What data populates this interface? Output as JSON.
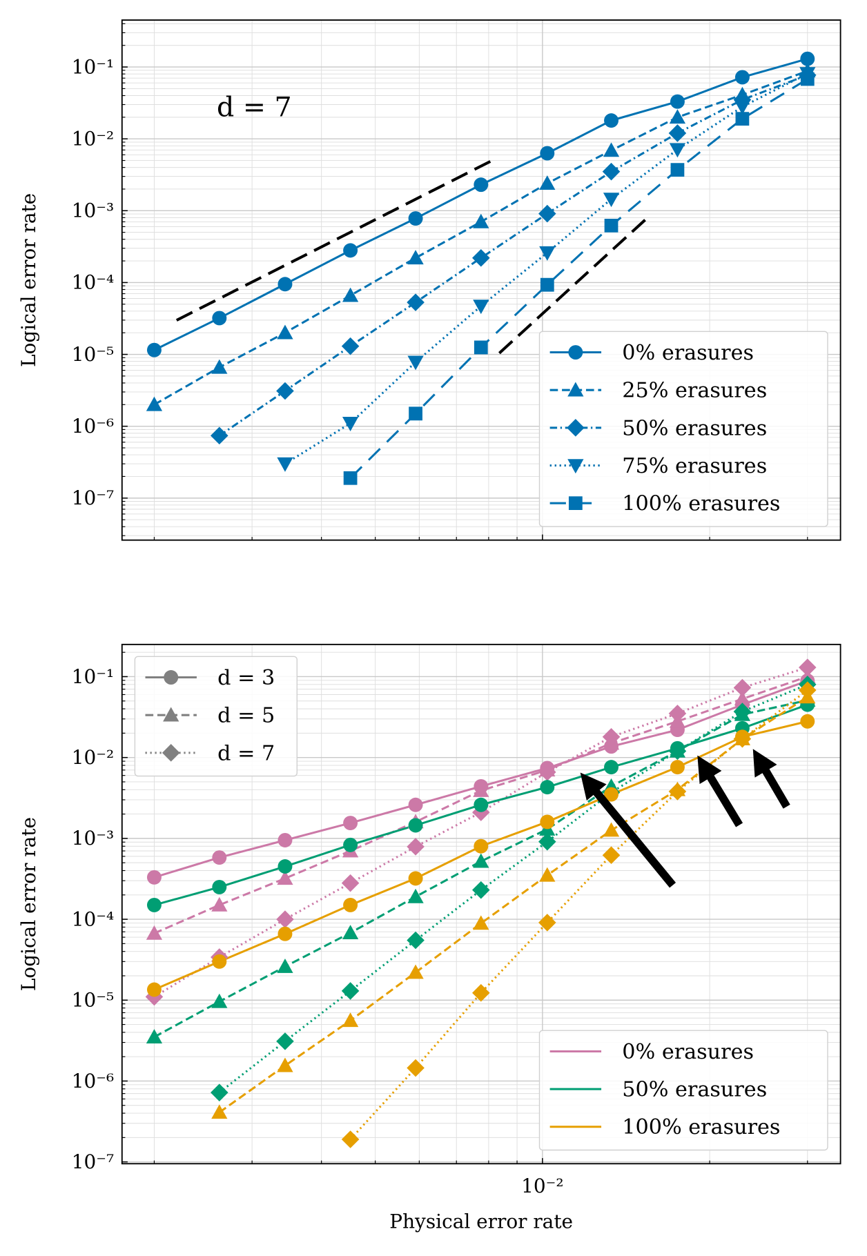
{
  "chart_data": [
    {
      "type": "line",
      "ylabel": "Logical error rate",
      "xscale": "log",
      "yscale": "log",
      "grid": "both",
      "xlim": [
        0.00175,
        0.0344
      ],
      "ylim": [
        2.6e-08,
        0.45
      ],
      "xticks": [
        0.01
      ],
      "show_xtick_labels": false,
      "yticks": [
        {
          "value": 0.1,
          "label": "10⁻¹"
        },
        {
          "value": 0.01,
          "label": "10⁻²"
        },
        {
          "value": 0.001,
          "label": "10⁻³"
        },
        {
          "value": 0.0001,
          "label": "10⁻⁴"
        },
        {
          "value": 1e-05,
          "label": "10⁻⁵"
        },
        {
          "value": 1e-06,
          "label": "10⁻⁶"
        },
        {
          "value": 1e-07,
          "label": "10⁻⁷"
        }
      ],
      "annotations": [
        {
          "text": "d = 7"
        }
      ],
      "legend": "lower right",
      "x": [
        0.002,
        0.00262,
        0.00344,
        0.00451,
        0.00591,
        0.00775,
        0.0102,
        0.0133,
        0.0175,
        0.0229,
        0.03
      ],
      "series": [
        {
          "name": "0% erasures",
          "color": "#0072b2",
          "marker": "circle",
          "linestyle": "solid",
          "values": [
            1.15e-05,
            3.2e-05,
            9.5e-05,
            0.00028,
            0.00078,
            0.0023,
            0.0063,
            0.018,
            0.033,
            0.072,
            0.13
          ]
        },
        {
          "name": "25% erasures",
          "color": "#0072b2",
          "marker": "triangle-up",
          "linestyle": "dashed",
          "values": [
            2e-06,
            6.6e-06,
            2e-05,
            6.6e-05,
            0.00022,
            0.0007,
            0.0024,
            0.0069,
            0.02,
            0.041,
            0.088
          ]
        },
        {
          "name": "50% erasures",
          "color": "#0072b2",
          "marker": "diamond",
          "linestyle": "dashdot",
          "values": [
            null,
            7.4e-07,
            3.1e-06,
            1.3e-05,
            5.3e-05,
            0.00022,
            0.00091,
            0.0035,
            0.012,
            0.035,
            0.077
          ]
        },
        {
          "name": "75% erasures",
          "color": "#0072b2",
          "marker": "triangle-down",
          "linestyle": "dotted",
          "values": [
            null,
            null,
            3e-07,
            1.1e-06,
            7.8e-06,
            4.7e-05,
            0.00026,
            0.00145,
            0.0071,
            0.028,
            0.081
          ]
        },
        {
          "name": "100% erasures",
          "color": "#0072b2",
          "marker": "square",
          "linestyle": "loosely-dashed",
          "values": [
            null,
            null,
            null,
            1.9e-07,
            1.5e-06,
            1.25e-05,
            9.3e-05,
            0.00062,
            0.0037,
            0.019,
            0.068
          ]
        }
      ]
    },
    {
      "type": "line",
      "xlabel": "Physical error rate",
      "ylabel": "Logical error rate",
      "xscale": "log",
      "yscale": "log",
      "grid": "both",
      "xlim": [
        0.00175,
        0.0344
      ],
      "ylim": [
        9.5e-08,
        0.25
      ],
      "xticks": [
        {
          "value": 0.01,
          "label": "10⁻²"
        }
      ],
      "yticks": [
        {
          "value": 0.1,
          "label": "10⁻¹"
        },
        {
          "value": 0.01,
          "label": "10⁻²"
        },
        {
          "value": 0.001,
          "label": "10⁻³"
        },
        {
          "value": 0.0001,
          "label": "10⁻⁴"
        },
        {
          "value": 1e-05,
          "label": "10⁻⁵"
        },
        {
          "value": 1e-06,
          "label": "10⁻⁶"
        },
        {
          "value": 1e-07,
          "label": "10⁻⁷"
        }
      ],
      "marker_legend": "upper left",
      "color_legend": "lower right",
      "x": [
        0.002,
        0.00262,
        0.00344,
        0.00451,
        0.00591,
        0.00775,
        0.0102,
        0.0133,
        0.0175,
        0.0229,
        0.03
      ],
      "distances": [
        {
          "name": "d = 3",
          "color": "#808080",
          "marker": "circle",
          "linestyle": "solid"
        },
        {
          "name": "d = 5",
          "color": "#808080",
          "marker": "triangle-up",
          "linestyle": "dashed"
        },
        {
          "name": "d = 7",
          "color": "#808080",
          "marker": "diamond",
          "linestyle": "dotted"
        }
      ],
      "groups": [
        {
          "name": "0% erasures",
          "color": "#cc79a7",
          "values": [
            [
              0.00033,
              0.00058,
              0.00095,
              0.00155,
              0.0026,
              0.0044,
              0.0074,
              0.0137,
              0.022,
              0.045,
              0.089
            ],
            [
              6.7e-05,
              0.00015,
              0.00032,
              0.0007,
              0.0016,
              0.0039,
              0.007,
              0.015,
              0.028,
              0.053,
              0.1
            ],
            [
              1.1e-05,
              3.4e-05,
              0.0001,
              0.00028,
              0.00079,
              0.0021,
              0.0066,
              0.018,
              0.035,
              0.073,
              0.13
            ]
          ]
        },
        {
          "name": "50% erasures",
          "color": "#009e73",
          "values": [
            [
              0.00015,
              0.00025,
              0.00045,
              0.00083,
              0.00145,
              0.0026,
              0.0043,
              0.0076,
              0.013,
              0.023,
              0.045
            ],
            [
              3.5e-06,
              9.6e-06,
              2.6e-05,
              6.8e-05,
              0.00019,
              0.00052,
              0.0013,
              0.0044,
              0.012,
              0.034,
              0.051
            ],
            [
              null,
              7.2e-07,
              3.1e-06,
              1.3e-05,
              5.5e-05,
              0.00023,
              0.00091,
              0.0037,
              0.012,
              0.037,
              0.08
            ]
          ]
        },
        {
          "name": "100% erasures",
          "color": "#e69f00",
          "values": [
            [
              1.35e-05,
              3e-05,
              6.6e-05,
              0.00015,
              0.00032,
              0.0008,
              0.0016,
              0.0035,
              0.0076,
              0.018,
              0.028
            ],
            [
              null,
              4.1e-07,
              1.55e-06,
              5.6e-06,
              2.2e-05,
              8.9e-05,
              0.00035,
              0.00126,
              0.004,
              0.017,
              0.056
            ],
            [
              null,
              null,
              null,
              1.9e-07,
              1.45e-06,
              1.23e-05,
              9.1e-05,
              0.00062,
              0.0038,
              0.017,
              0.068
            ]
          ]
        }
      ]
    }
  ]
}
